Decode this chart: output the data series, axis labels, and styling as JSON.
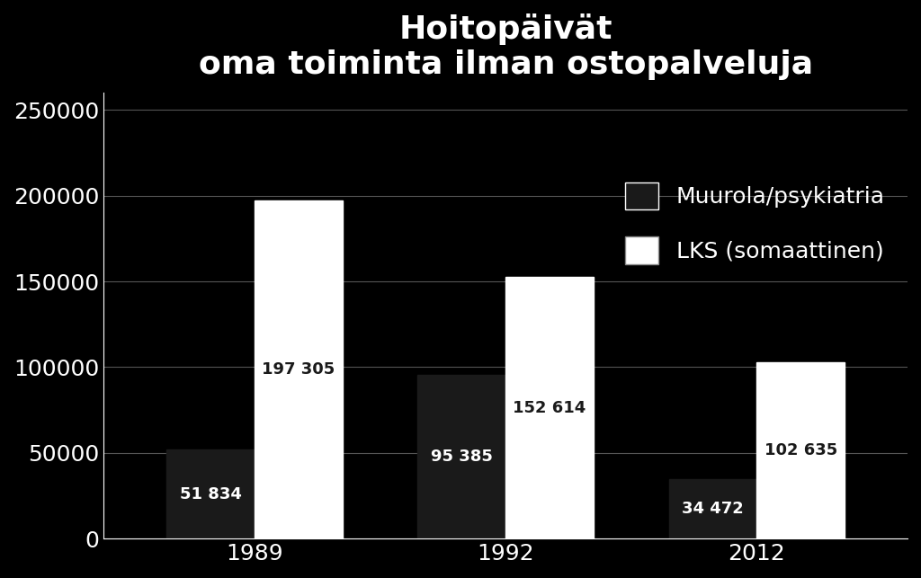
{
  "title": "Hoitopäivät\noma toiminta ilman ostopalveluja",
  "years": [
    "1989",
    "1992",
    "2012"
  ],
  "series": [
    {
      "name": "Muurola/psykiatria",
      "color": "#1a1a1a",
      "values": [
        51834,
        95385,
        34472
      ],
      "labels": [
        "51 834",
        "95 385",
        "34 472"
      ]
    },
    {
      "name": "LKS (somaattinen)",
      "color": "#ffffff",
      "values": [
        197305,
        152614,
        102635
      ],
      "labels": [
        "197 305",
        "152 614",
        "102 635"
      ]
    }
  ],
  "ylim": [
    0,
    260000
  ],
  "yticks": [
    0,
    50000,
    100000,
    150000,
    200000,
    250000
  ],
  "background_color": "#000000",
  "text_color": "#ffffff",
  "bar_width": 0.35,
  "title_fontsize": 26,
  "tick_fontsize": 18,
  "legend_fontsize": 18,
  "label_fontsize": 13
}
